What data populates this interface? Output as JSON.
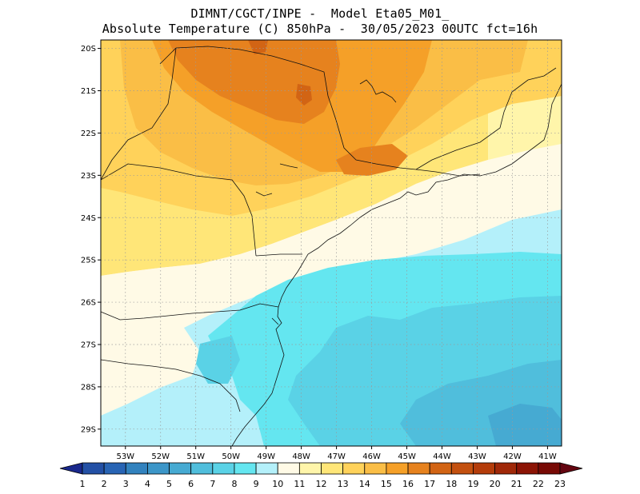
{
  "header": {
    "title_line1": "DIMNT/CGCT/INPE -  Model Eta05_M01_",
    "title_line2": "Absolute Temperature (C) 850hPa -  30/05/2023 00UTC fct=16h"
  },
  "axes": {
    "lon_labels": [
      "53W",
      "52W",
      "51W",
      "50W",
      "49W",
      "48W",
      "47W",
      "46W",
      "45W",
      "44W",
      "43W",
      "42W",
      "41W"
    ],
    "lon_values": [
      -53,
      -52,
      -51,
      -50,
      -49,
      -48,
      -47,
      -46,
      -45,
      -44,
      -43,
      -42,
      -41
    ],
    "lat_labels": [
      "20S",
      "21S",
      "22S",
      "23S",
      "24S",
      "25S",
      "26S",
      "27S",
      "28S",
      "29S"
    ],
    "lat_values": [
      -20,
      -21,
      -22,
      -23,
      -24,
      -25,
      -26,
      -27,
      -28,
      -29
    ],
    "lon_range": [
      -53.7,
      -40.6
    ],
    "lat_range": [
      -29.4,
      -19.8
    ],
    "grid": "dotted"
  },
  "colorbar": {
    "labels": [
      "1",
      "2",
      "3",
      "4",
      "5",
      "6",
      "7",
      "8",
      "9",
      "10",
      "11",
      "12",
      "13",
      "14",
      "15",
      "16",
      "17",
      "18",
      "19",
      "20",
      "21",
      "22",
      "23"
    ],
    "colors": [
      "#1e3c96",
      "#2350a5",
      "#2864b4",
      "#3282be",
      "#3c96c8",
      "#46aad2",
      "#50bedc",
      "#5ad2e6",
      "#64e6f0",
      "#b4f0fa",
      "#fffae6",
      "#fff5aa",
      "#ffe678",
      "#ffd25a",
      "#fabe46",
      "#f5a028",
      "#e6821e",
      "#d26414",
      "#c3500f",
      "#b43c0a",
      "#a02808",
      "#8c1405",
      "#780a05"
    ],
    "under_color": "#19288c",
    "over_color": "#640510"
  }
}
